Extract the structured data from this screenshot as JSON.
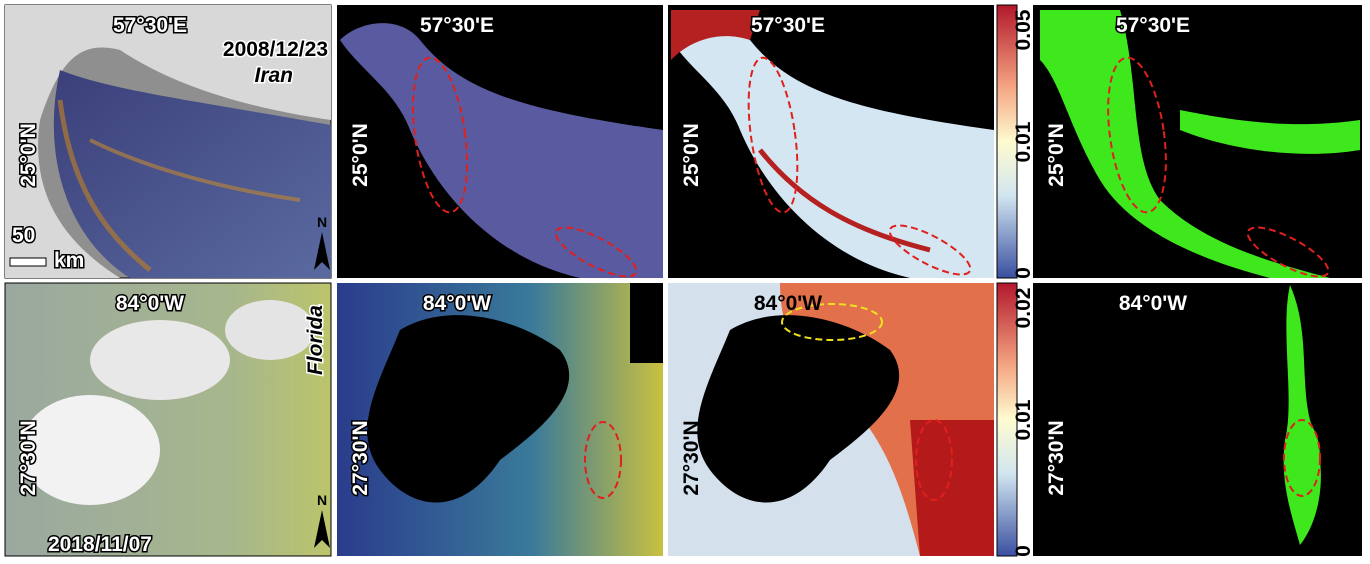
{
  "figure": {
    "rows": [
      {
        "lon_label": "57°30'E",
        "lat_label": "25°0'N",
        "date": "2008/12/23",
        "region": "Iran",
        "scale_value": "50",
        "scale_unit": "km",
        "north": "N",
        "colorbar_ticks": [
          "0.05",
          "0.01",
          "0"
        ]
      },
      {
        "lon_label": "84°0'W",
        "lat_label": "27°30'N",
        "date": "2018/11/07",
        "region": "Florida",
        "north": "N",
        "colorbar_ticks": [
          "0.02",
          "0.01",
          "0"
        ]
      }
    ]
  }
}
